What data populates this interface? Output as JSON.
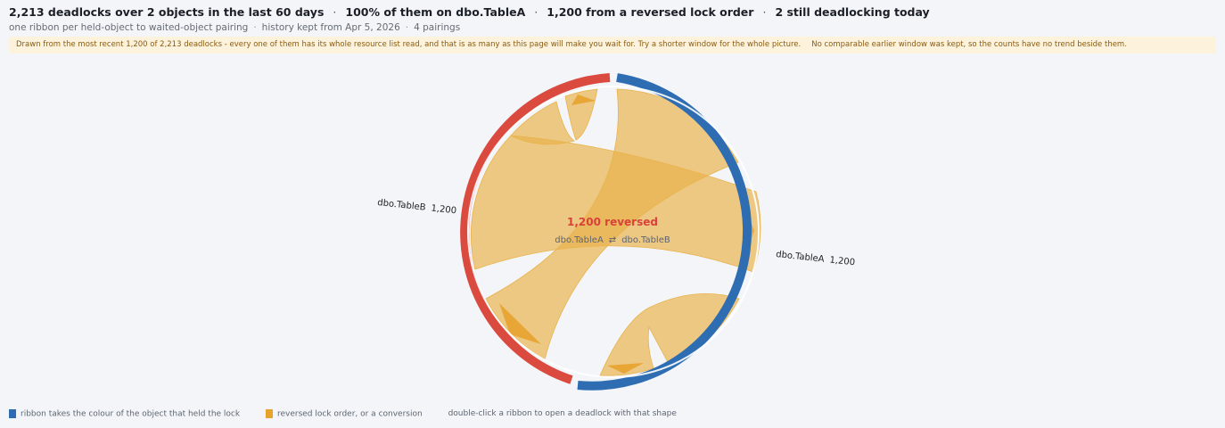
{
  "header": {
    "headline_parts": [
      "2,213 deadlocks over 2 objects in the last 60 days",
      "100% of them on dbo.TableA",
      "1,200 from a reversed lock order",
      "2 still deadlocking today"
    ],
    "separator": "·",
    "sub_parts": [
      "one ribbon per held-object to waited-object pairing",
      "history kept from Apr 5, 2026",
      "4 pairings"
    ],
    "sub_separator": "·"
  },
  "notice": {
    "part1": "Drawn from the most recent 1,200 of 2,213 deadlocks - every one of them has its whole resource list read, and that is as many as this page will make you wait for. Try a shorter window for the whole picture.",
    "part2": "No comparable earlier window was kept, so the counts have no trend beside them."
  },
  "diagram": {
    "nodes": [
      {
        "name": "dbo.TableA",
        "count": "1,200",
        "color": "#2f6db3"
      },
      {
        "name": "dbo.TableB",
        "count": "1,200",
        "color": "#db4a3f"
      }
    ],
    "center": {
      "title": "1,200 reversed",
      "left": "dbo.TableA",
      "arrow": "⇄",
      "right": "dbo.TableB"
    },
    "ribbon_color": "#e9b34b",
    "arrow_color": "#e8a22e",
    "center_title_color": "#d9423a"
  },
  "legend": {
    "items": [
      {
        "label": "ribbon takes the colour of the object that held the lock",
        "color": "#2f6db3",
        "icon": "blue-square-icon"
      },
      {
        "label": "reversed lock order, or a conversion",
        "color": "#e8a22e",
        "icon": "amber-square-icon"
      },
      {
        "label": "double-click a ribbon to open a deadlock with that shape"
      }
    ]
  }
}
